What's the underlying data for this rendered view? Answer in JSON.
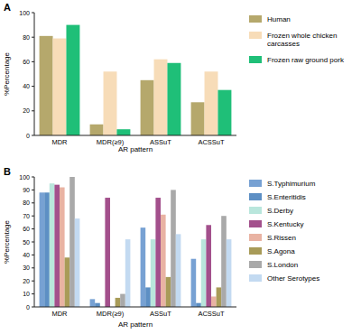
{
  "chart_data": [
    {
      "type": "bar",
      "title": "A",
      "x_label": "AR pattern",
      "y_label": "%Percentage",
      "categories": [
        "MDR",
        "MDR(≥9)",
        "ASSuT",
        "ACSSuT"
      ],
      "series": [
        {
          "name": "Human",
          "color": "#b5a86c",
          "values": [
            81,
            9,
            45,
            27
          ]
        },
        {
          "name": "Frozen whole chicken carcasses",
          "color": "#f7dcb8",
          "values": [
            79,
            52,
            62,
            52
          ]
        },
        {
          "name": "Frozen raw ground pork",
          "color": "#1fbf78",
          "values": [
            90,
            5,
            59,
            37
          ]
        }
      ],
      "ylim": [
        0,
        100
      ],
      "yticks": [
        0,
        20,
        40,
        60,
        80,
        100
      ],
      "grid": false,
      "legend": "right"
    },
    {
      "type": "bar",
      "title": "B",
      "x_label": "AR pattern",
      "y_label": "%Percentage",
      "categories": [
        "MDR",
        "MDR(≥9)",
        "ASSuT",
        "ACSSuT"
      ],
      "series": [
        {
          "name": "S.Typhimurium",
          "color": "#77a1d3",
          "values": [
            88,
            6,
            61,
            37
          ]
        },
        {
          "name": "S.Enteritidis",
          "color": "#5d8fc4",
          "values": [
            88,
            3,
            15,
            3
          ]
        },
        {
          "name": "S.Derby",
          "color": "#b9e6dc",
          "values": [
            95,
            0,
            52,
            52
          ]
        },
        {
          "name": "S.Kentucky",
          "color": "#a3508c",
          "values": [
            94,
            84,
            84,
            63
          ]
        },
        {
          "name": "S.Rissen",
          "color": "#e9b3a3",
          "values": [
            92,
            0,
            71,
            8
          ]
        },
        {
          "name": "S.Agona",
          "color": "#a89b58",
          "values": [
            38,
            7,
            23,
            15
          ]
        },
        {
          "name": "S.London",
          "color": "#a9a9a9",
          "values": [
            100,
            10,
            90,
            70
          ]
        },
        {
          "name": "Other Serotypes",
          "color": "#c3daf1",
          "values": [
            68,
            52,
            56,
            52
          ]
        }
      ],
      "ylim": [
        0,
        100
      ],
      "yticks": [
        0,
        10,
        20,
        30,
        40,
        50,
        60,
        70,
        80,
        90,
        100
      ],
      "grid": false,
      "legend": "right"
    }
  ]
}
